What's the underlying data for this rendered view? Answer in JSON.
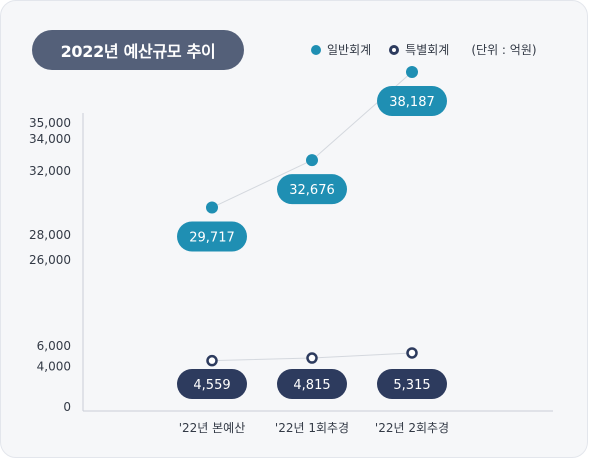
{
  "title": "2022년 예산규모 추이",
  "legend": {
    "general": "일반회계",
    "special": "특별회계",
    "unit": "(단위 : 억원)"
  },
  "colors": {
    "general": "#1f8fb3",
    "special": "#2d3b5e",
    "title_bg": "#546079"
  },
  "chart_data": {
    "type": "line",
    "categories": [
      "'22년 본예산",
      "'22년 1회추경",
      "'22년 2회추경"
    ],
    "series": [
      {
        "name": "일반회계",
        "values": [
          29717,
          32676,
          38187
        ],
        "labels": [
          "29,717",
          "32,676",
          "38,187"
        ]
      },
      {
        "name": "특별회계",
        "values": [
          4559,
          4815,
          5315
        ],
        "labels": [
          "4,559",
          "4,815",
          "5,315"
        ]
      }
    ],
    "y_ticks": [
      0,
      4000,
      6000,
      26000,
      28000,
      32000,
      34000,
      35000
    ],
    "y_tick_labels": [
      "0",
      "4,000",
      "6,000",
      "26,000",
      "28,000",
      "32,000",
      "34,000",
      "35,000"
    ],
    "y_axis": "broken",
    "unit": "억원",
    "grid": false,
    "legend_position": "top-right"
  }
}
